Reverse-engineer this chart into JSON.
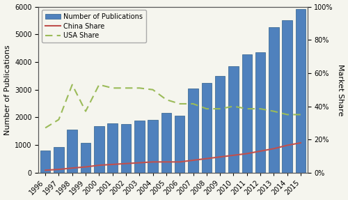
{
  "years": [
    "1996",
    "1997",
    "1998",
    "1999",
    "2000",
    "2001",
    "2002",
    "2003",
    "2004",
    "2005",
    "2006",
    "2007",
    "2008",
    "2009",
    "2010",
    "2011",
    "2012",
    "2013",
    "2014",
    "2015"
  ],
  "publications": [
    800,
    920,
    1560,
    1090,
    1690,
    1780,
    1750,
    1880,
    1910,
    2160,
    2060,
    3040,
    3240,
    3490,
    3860,
    4270,
    4360,
    5250,
    5520,
    5920
  ],
  "china_share": [
    1.5,
    2.0,
    2.8,
    3.5,
    4.5,
    5.0,
    5.5,
    6.0,
    6.5,
    6.5,
    6.5,
    7.5,
    8.5,
    9.5,
    10.5,
    11.5,
    13.0,
    14.5,
    16.5,
    18.0
  ],
  "usa_share": [
    27.0,
    32.0,
    53.0,
    37.0,
    53.0,
    51.0,
    51.0,
    51.0,
    50.0,
    44.0,
    41.5,
    41.5,
    38.5,
    38.5,
    40.0,
    38.5,
    38.5,
    37.0,
    35.0,
    35.0
  ],
  "bar_color": "#4F81BD",
  "bar_edgecolor": "#2E5F8A",
  "china_color": "#C0504D",
  "usa_color": "#9BBB59",
  "bg_color": "#F5F5EE",
  "left_ylim": [
    0,
    6000
  ],
  "left_yticks": [
    0,
    1000,
    2000,
    3000,
    4000,
    5000,
    6000
  ],
  "right_ylim": [
    0,
    100
  ],
  "right_yticks": [
    0,
    20,
    40,
    60,
    80,
    100
  ],
  "right_yticklabels": [
    "0%",
    "20%",
    "40%",
    "60%",
    "80%",
    "100%"
  ],
  "ylabel_left": "Number of Publications",
  "ylabel_right": "Market Share",
  "legend_labels": [
    "Number of Publications",
    "China Share",
    "USA Share"
  ],
  "figsize": [
    5.0,
    2.87
  ],
  "dpi": 100
}
